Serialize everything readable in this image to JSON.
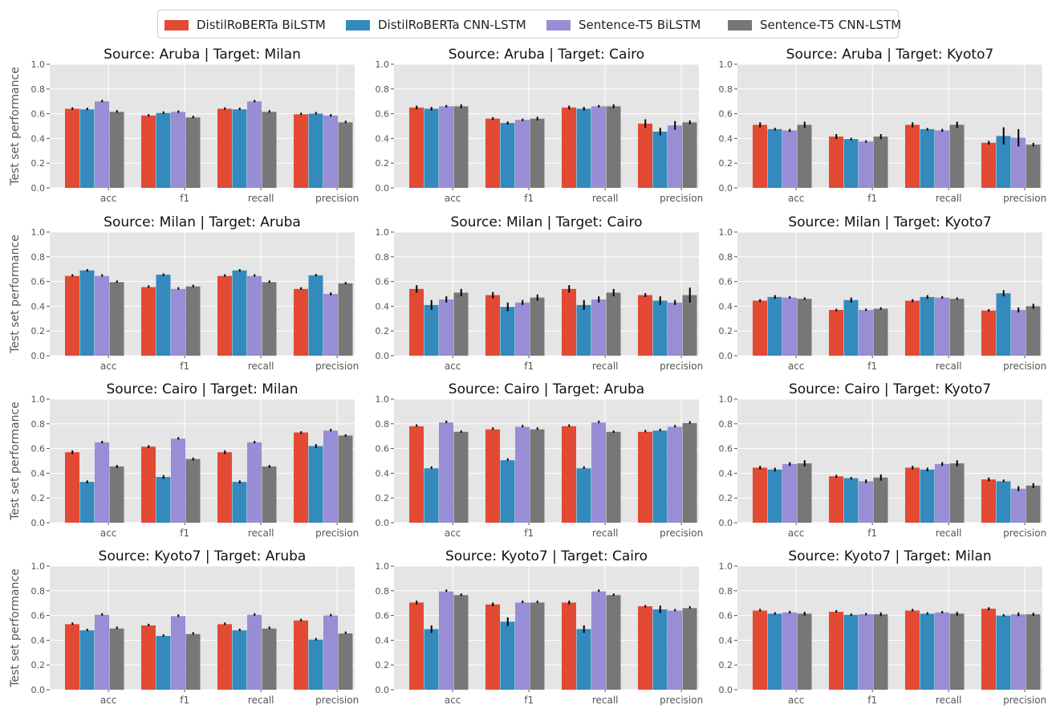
{
  "colors": {
    "series": [
      "#E24A33",
      "#348ABD",
      "#988ED5",
      "#777777"
    ],
    "panel_bg": "#E5E5E5",
    "grid": "#FFFFFF",
    "errorbar": "#000000"
  },
  "legend": [
    "DistilRoBERTa BiLSTM",
    "DistilRoBERTa CNN-LSTM",
    "Sentence-T5 BiLSTM",
    "Sentence-T5 CNN-LSTM"
  ],
  "chart_data": [
    {
      "type": "bar",
      "title": "Source: Aruba | Target: Milan",
      "ylabel": "Test set performance",
      "ylim": [
        0,
        1
      ],
      "yticks": [
        "0.0",
        "0.2",
        "0.4",
        "0.6",
        "0.8",
        "1.0"
      ],
      "categories": [
        "acc",
        "f1",
        "recall",
        "precision"
      ],
      "series": [
        {
          "name": "DistilRoBERTa BiLSTM",
          "values": [
            0.64,
            0.585,
            0.64,
            0.595
          ],
          "errors": [
            0.008,
            0.008,
            0.008,
            0.006
          ]
        },
        {
          "name": "DistilRoBERTa CNN-LSTM",
          "values": [
            0.635,
            0.605,
            0.635,
            0.6
          ],
          "errors": [
            0.006,
            0.006,
            0.006,
            0.006
          ]
        },
        {
          "name": "Sentence-T5 BiLSTM",
          "values": [
            0.7,
            0.615,
            0.7,
            0.585
          ],
          "errors": [
            0.008,
            0.008,
            0.008,
            0.008
          ]
        },
        {
          "name": "Sentence-T5 CNN-LSTM",
          "values": [
            0.615,
            0.57,
            0.615,
            0.53
          ],
          "errors": [
            0.006,
            0.006,
            0.006,
            0.006
          ]
        }
      ]
    },
    {
      "type": "bar",
      "title": "Source: Aruba | Target: Cairo",
      "ylabel": "",
      "ylim": [
        0,
        1
      ],
      "yticks": [
        "0.0",
        "0.2",
        "0.4",
        "0.6",
        "0.8",
        "1.0"
      ],
      "categories": [
        "acc",
        "f1",
        "recall",
        "precision"
      ],
      "series": [
        {
          "name": "DistilRoBERTa BiLSTM",
          "values": [
            0.65,
            0.56,
            0.65,
            0.52
          ],
          "errors": [
            0.015,
            0.012,
            0.015,
            0.035
          ]
        },
        {
          "name": "DistilRoBERTa CNN-LSTM",
          "values": [
            0.64,
            0.525,
            0.64,
            0.455
          ],
          "errors": [
            0.015,
            0.012,
            0.015,
            0.03
          ]
        },
        {
          "name": "Sentence-T5 BiLSTM",
          "values": [
            0.66,
            0.55,
            0.66,
            0.505
          ],
          "errors": [
            0.01,
            0.01,
            0.01,
            0.035
          ]
        },
        {
          "name": "Sentence-T5 CNN-LSTM",
          "values": [
            0.66,
            0.56,
            0.66,
            0.53
          ],
          "errors": [
            0.015,
            0.015,
            0.015,
            0.015
          ]
        }
      ]
    },
    {
      "type": "bar",
      "title": "Source: Aruba | Target: Kyoto7",
      "ylabel": "",
      "ylim": [
        0,
        1
      ],
      "yticks": [
        "0.0",
        "0.2",
        "0.4",
        "0.6",
        "0.8",
        "1.0"
      ],
      "categories": [
        "acc",
        "f1",
        "recall",
        "precision"
      ],
      "series": [
        {
          "name": "DistilRoBERTa BiLSTM",
          "values": [
            0.51,
            0.415,
            0.51,
            0.365
          ],
          "errors": [
            0.02,
            0.02,
            0.02,
            0.015
          ]
        },
        {
          "name": "DistilRoBERTa CNN-LSTM",
          "values": [
            0.475,
            0.395,
            0.475,
            0.42
          ],
          "errors": [
            0.01,
            0.01,
            0.01,
            0.07
          ]
        },
        {
          "name": "Sentence-T5 BiLSTM",
          "values": [
            0.465,
            0.375,
            0.465,
            0.405
          ],
          "errors": [
            0.012,
            0.01,
            0.012,
            0.07
          ]
        },
        {
          "name": "Sentence-T5 CNN-LSTM",
          "values": [
            0.51,
            0.415,
            0.51,
            0.35
          ],
          "errors": [
            0.025,
            0.02,
            0.025,
            0.015
          ]
        }
      ]
    },
    {
      "type": "bar",
      "title": "Source: Milan | Target: Aruba",
      "ylabel": "Test set performance",
      "ylim": [
        0,
        1
      ],
      "yticks": [
        "0.0",
        "0.2",
        "0.4",
        "0.6",
        "0.8",
        "1.0"
      ],
      "categories": [
        "acc",
        "f1",
        "recall",
        "precision"
      ],
      "series": [
        {
          "name": "DistilRoBERTa BiLSTM",
          "values": [
            0.645,
            0.555,
            0.645,
            0.54
          ],
          "errors": [
            0.006,
            0.006,
            0.006,
            0.006
          ]
        },
        {
          "name": "DistilRoBERTa CNN-LSTM",
          "values": [
            0.69,
            0.655,
            0.69,
            0.65
          ],
          "errors": [
            0.01,
            0.01,
            0.01,
            0.008
          ]
        },
        {
          "name": "Sentence-T5 BiLSTM",
          "values": [
            0.645,
            0.54,
            0.645,
            0.5
          ],
          "errors": [
            0.006,
            0.006,
            0.006,
            0.012
          ]
        },
        {
          "name": "Sentence-T5 CNN-LSTM",
          "values": [
            0.595,
            0.56,
            0.595,
            0.585
          ],
          "errors": [
            0.006,
            0.006,
            0.006,
            0.008
          ]
        }
      ]
    },
    {
      "type": "bar",
      "title": "Source: Milan | Target: Cairo",
      "ylabel": "",
      "ylim": [
        0,
        1
      ],
      "yticks": [
        "0.0",
        "0.2",
        "0.4",
        "0.6",
        "0.8",
        "1.0"
      ],
      "categories": [
        "acc",
        "f1",
        "recall",
        "precision"
      ],
      "series": [
        {
          "name": "DistilRoBERTa BiLSTM",
          "values": [
            0.54,
            0.49,
            0.54,
            0.49
          ],
          "errors": [
            0.03,
            0.025,
            0.03,
            0.015
          ]
        },
        {
          "name": "DistilRoBERTa CNN-LSTM",
          "values": [
            0.41,
            0.395,
            0.41,
            0.445
          ],
          "errors": [
            0.04,
            0.035,
            0.04,
            0.035
          ]
        },
        {
          "name": "Sentence-T5 BiLSTM",
          "values": [
            0.455,
            0.43,
            0.455,
            0.43
          ],
          "errors": [
            0.025,
            0.02,
            0.025,
            0.02
          ]
        },
        {
          "name": "Sentence-T5 CNN-LSTM",
          "values": [
            0.51,
            0.47,
            0.51,
            0.49
          ],
          "errors": [
            0.03,
            0.025,
            0.03,
            0.06
          ]
        }
      ]
    },
    {
      "type": "bar",
      "title": "Source: Milan | Target: Kyoto7",
      "ylabel": "",
      "ylim": [
        0,
        1
      ],
      "yticks": [
        "0.0",
        "0.2",
        "0.4",
        "0.6",
        "0.8",
        "1.0"
      ],
      "categories": [
        "acc",
        "f1",
        "recall",
        "precision"
      ],
      "series": [
        {
          "name": "DistilRoBERTa BiLSTM",
          "values": [
            0.445,
            0.37,
            0.445,
            0.365
          ],
          "errors": [
            0.012,
            0.01,
            0.012,
            0.008
          ]
        },
        {
          "name": "DistilRoBERTa CNN-LSTM",
          "values": [
            0.475,
            0.45,
            0.475,
            0.505
          ],
          "errors": [
            0.015,
            0.02,
            0.015,
            0.025
          ]
        },
        {
          "name": "Sentence-T5 BiLSTM",
          "values": [
            0.47,
            0.37,
            0.47,
            0.37
          ],
          "errors": [
            0.008,
            0.008,
            0.008,
            0.02
          ]
        },
        {
          "name": "Sentence-T5 CNN-LSTM",
          "values": [
            0.46,
            0.38,
            0.46,
            0.4
          ],
          "errors": [
            0.008,
            0.008,
            0.008,
            0.02
          ]
        }
      ]
    },
    {
      "type": "bar",
      "title": "Source: Cairo | Target: Milan",
      "ylabel": "Test set performance",
      "ylim": [
        0,
        1
      ],
      "yticks": [
        "0.0",
        "0.2",
        "0.4",
        "0.6",
        "0.8",
        "1.0"
      ],
      "categories": [
        "acc",
        "f1",
        "recall",
        "precision"
      ],
      "series": [
        {
          "name": "DistilRoBERTa BiLSTM",
          "values": [
            0.57,
            0.615,
            0.57,
            0.73
          ],
          "errors": [
            0.015,
            0.012,
            0.015,
            0.01
          ]
        },
        {
          "name": "DistilRoBERTa CNN-LSTM",
          "values": [
            0.33,
            0.37,
            0.33,
            0.62
          ],
          "errors": [
            0.012,
            0.015,
            0.012,
            0.015
          ]
        },
        {
          "name": "Sentence-T5 BiLSTM",
          "values": [
            0.65,
            0.68,
            0.65,
            0.745
          ],
          "errors": [
            0.008,
            0.008,
            0.008,
            0.006
          ]
        },
        {
          "name": "Sentence-T5 CNN-LSTM",
          "values": [
            0.455,
            0.515,
            0.455,
            0.705
          ],
          "errors": [
            0.012,
            0.012,
            0.012,
            0.01
          ]
        }
      ]
    },
    {
      "type": "bar",
      "title": "Source: Cairo | Target: Aruba",
      "ylabel": "",
      "ylim": [
        0,
        1
      ],
      "yticks": [
        "0.0",
        "0.2",
        "0.4",
        "0.6",
        "0.8",
        "1.0"
      ],
      "categories": [
        "acc",
        "f1",
        "recall",
        "precision"
      ],
      "series": [
        {
          "name": "DistilRoBERTa BiLSTM",
          "values": [
            0.78,
            0.755,
            0.78,
            0.735
          ],
          "errors": [
            0.004,
            0.004,
            0.004,
            0.004
          ]
        },
        {
          "name": "DistilRoBERTa CNN-LSTM",
          "values": [
            0.44,
            0.505,
            0.44,
            0.745
          ],
          "errors": [
            0.004,
            0.004,
            0.004,
            0.004
          ]
        },
        {
          "name": "Sentence-T5 BiLSTM",
          "values": [
            0.81,
            0.775,
            0.81,
            0.775
          ],
          "errors": [
            0.004,
            0.004,
            0.004,
            0.004
          ]
        },
        {
          "name": "Sentence-T5 CNN-LSTM",
          "values": [
            0.735,
            0.755,
            0.735,
            0.805
          ],
          "errors": [
            0.008,
            0.004,
            0.008,
            0.004
          ]
        }
      ]
    },
    {
      "type": "bar",
      "title": "Source: Cairo | Target: Kyoto7",
      "ylabel": "",
      "ylim": [
        0,
        1
      ],
      "yticks": [
        "0.0",
        "0.2",
        "0.4",
        "0.6",
        "0.8",
        "1.0"
      ],
      "categories": [
        "acc",
        "f1",
        "recall",
        "precision"
      ],
      "series": [
        {
          "name": "DistilRoBERTa BiLSTM",
          "values": [
            0.445,
            0.375,
            0.445,
            0.35
          ],
          "errors": [
            0.015,
            0.012,
            0.015,
            0.015
          ]
        },
        {
          "name": "DistilRoBERTa CNN-LSTM",
          "values": [
            0.43,
            0.36,
            0.43,
            0.335
          ],
          "errors": [
            0.015,
            0.01,
            0.015,
            0.006
          ]
        },
        {
          "name": "Sentence-T5 BiLSTM",
          "values": [
            0.475,
            0.335,
            0.475,
            0.275
          ],
          "errors": [
            0.015,
            0.015,
            0.015,
            0.02
          ]
        },
        {
          "name": "Sentence-T5 CNN-LSTM",
          "values": [
            0.48,
            0.365,
            0.48,
            0.3
          ],
          "errors": [
            0.025,
            0.025,
            0.025,
            0.02
          ]
        }
      ]
    },
    {
      "type": "bar",
      "title": "Source: Kyoto7 | Target: Aruba",
      "ylabel": "Test set performance",
      "ylim": [
        0,
        1
      ],
      "yticks": [
        "0.0",
        "0.2",
        "0.4",
        "0.6",
        "0.8",
        "1.0"
      ],
      "categories": [
        "acc",
        "f1",
        "recall",
        "precision"
      ],
      "series": [
        {
          "name": "DistilRoBERTa BiLSTM",
          "values": [
            0.53,
            0.52,
            0.53,
            0.56
          ],
          "errors": [
            0.006,
            0.006,
            0.006,
            0.006
          ]
        },
        {
          "name": "DistilRoBERTa CNN-LSTM",
          "values": [
            0.48,
            0.435,
            0.48,
            0.405
          ],
          "errors": [
            0.006,
            0.006,
            0.006,
            0.006
          ]
        },
        {
          "name": "Sentence-T5 BiLSTM",
          "values": [
            0.605,
            0.595,
            0.605,
            0.6
          ],
          "errors": [
            0.006,
            0.006,
            0.006,
            0.006
          ]
        },
        {
          "name": "Sentence-T5 CNN-LSTM",
          "values": [
            0.495,
            0.45,
            0.495,
            0.455
          ],
          "errors": [
            0.004,
            0.004,
            0.004,
            0.004
          ]
        }
      ]
    },
    {
      "type": "bar",
      "title": "Source: Kyoto7 | Target: Cairo",
      "ylabel": "",
      "ylim": [
        0,
        1
      ],
      "yticks": [
        "0.0",
        "0.2",
        "0.4",
        "0.6",
        "0.8",
        "1.0"
      ],
      "categories": [
        "acc",
        "f1",
        "recall",
        "precision"
      ],
      "series": [
        {
          "name": "DistilRoBERTa BiLSTM",
          "values": [
            0.705,
            0.69,
            0.705,
            0.675
          ],
          "errors": [
            0.015,
            0.015,
            0.015,
            0.01
          ]
        },
        {
          "name": "DistilRoBERTa CNN-LSTM",
          "values": [
            0.49,
            0.55,
            0.49,
            0.65
          ],
          "errors": [
            0.03,
            0.035,
            0.03,
            0.03
          ]
        },
        {
          "name": "Sentence-T5 BiLSTM",
          "values": [
            0.795,
            0.705,
            0.795,
            0.64
          ],
          "errors": [
            0.004,
            0.004,
            0.004,
            0.006
          ]
        },
        {
          "name": "Sentence-T5 CNN-LSTM",
          "values": [
            0.765,
            0.705,
            0.765,
            0.66
          ],
          "errors": [
            0.006,
            0.004,
            0.006,
            0.004
          ]
        }
      ]
    },
    {
      "type": "bar",
      "title": "Source: Kyoto7 | Target: Milan",
      "ylabel": "",
      "ylim": [
        0,
        1
      ],
      "yticks": [
        "0.0",
        "0.2",
        "0.4",
        "0.6",
        "0.8",
        "1.0"
      ],
      "categories": [
        "acc",
        "f1",
        "recall",
        "precision"
      ],
      "series": [
        {
          "name": "DistilRoBERTa BiLSTM",
          "values": [
            0.64,
            0.63,
            0.64,
            0.655
          ],
          "errors": [
            0.006,
            0.006,
            0.006,
            0.012
          ]
        },
        {
          "name": "DistilRoBERTa CNN-LSTM",
          "values": [
            0.615,
            0.605,
            0.615,
            0.6
          ],
          "errors": [
            0.008,
            0.008,
            0.008,
            0.008
          ]
        },
        {
          "name": "Sentence-T5 BiLSTM",
          "values": [
            0.625,
            0.61,
            0.625,
            0.61
          ],
          "errors": [
            0.008,
            0.008,
            0.008,
            0.015
          ]
        },
        {
          "name": "Sentence-T5 CNN-LSTM",
          "values": [
            0.615,
            0.61,
            0.615,
            0.61
          ],
          "errors": [
            0.015,
            0.015,
            0.015,
            0.012
          ]
        }
      ]
    }
  ]
}
